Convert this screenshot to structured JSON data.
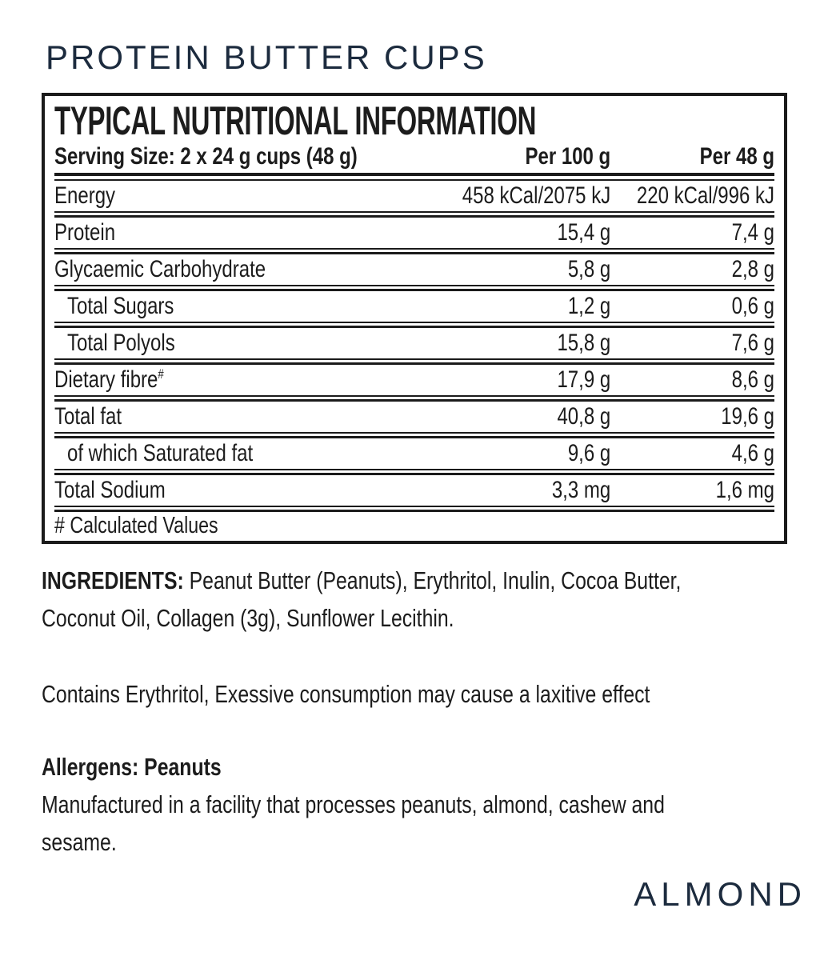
{
  "page": {
    "title": "PROTEIN BUTTER CUPS",
    "variant": "ALMOND",
    "ink_color": "#1c1c1c",
    "brand_color": "#1c2b3e",
    "background_color": "#ffffff"
  },
  "nutrition_table": {
    "heading": "TYPICAL NUTRITIONAL INFORMATION",
    "columns": {
      "label": "Serving Size: 2 x 24 g cups (48 g)",
      "per_100": "Per 100 g",
      "per_48": "Per 48 g"
    },
    "rows": [
      {
        "label": "Energy",
        "per_100": "458 kCal/2075 kJ",
        "per_48": "220 kCal/996 kJ"
      },
      {
        "label": "Protein",
        "per_100": "15,4 g",
        "per_48": "7,4 g"
      },
      {
        "label": "Glycaemic Carbohydrate",
        "per_100": "5,8 g",
        "per_48": "2,8 g"
      },
      {
        "label": "Total Sugars",
        "indent": true,
        "per_100": "1,2 g",
        "per_48": "0,6 g"
      },
      {
        "label": "Total Polyols",
        "indent": true,
        "per_100": "15,8 g",
        "per_48": "7,6 g"
      },
      {
        "label": "Dietary fibre",
        "sup": "#",
        "per_100": "17,9 g",
        "per_48": "8,6 g"
      },
      {
        "label": "Total fat",
        "per_100": "40,8 g",
        "per_48": "19,6 g"
      },
      {
        "label": "of which Saturated fat",
        "indent": true,
        "per_100": "9,6 g",
        "per_48": "4,6 g"
      },
      {
        "label": "Total Sodium",
        "per_100": "3,3 mg",
        "per_48": "1,6 mg"
      }
    ],
    "footnote": "# Calculated Values"
  },
  "ingredients": {
    "label": "INGREDIENTS:",
    "line1": " Peanut Butter (Peanuts), Erythritol, Inulin, Cocoa Butter,",
    "line2": "Coconut Oil, Collagen (3g), Sunflower Lecithin."
  },
  "notices": {
    "erythritol": "Contains Erythritol, Exessive consumption may cause a laxitive effect",
    "allergens": "Allergens: Peanuts",
    "facility_line1": "Manufactured in a facility that processes peanuts, almond, cashew and",
    "facility_line2": "sesame."
  }
}
